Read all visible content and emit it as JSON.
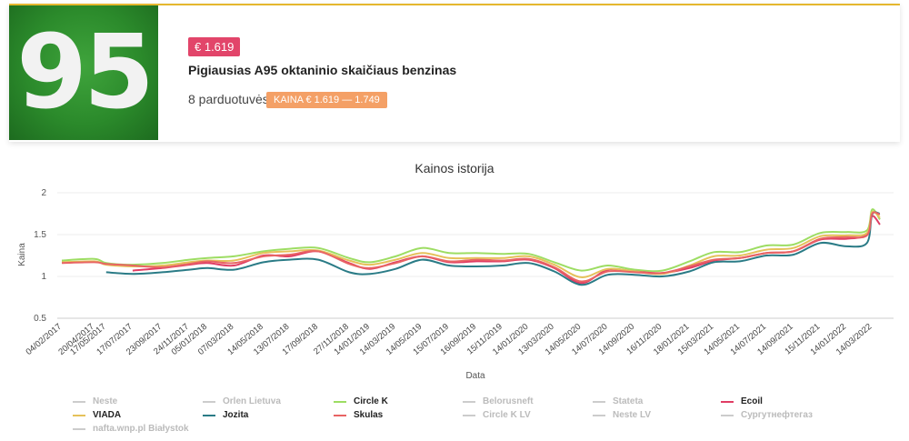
{
  "header": {
    "octane": "95",
    "price": "€ 1.619",
    "title": "Pigiausias A95 oktaninio skaičiaus benzinas",
    "stations": "8 parduotuvės",
    "range": "KAINA € 1.619 — 1.749"
  },
  "chart_data": {
    "type": "line",
    "title": "Kainos istorija",
    "xlabel": "Data",
    "ylabel": "Kaina",
    "ylim": [
      0.5,
      2
    ],
    "yticks": [
      "0.5",
      "1",
      "1.5",
      "2"
    ],
    "grid": true,
    "legend_placement": "bottom",
    "x_ticks": [
      "04/02/2017",
      "20/04/2017",
      "17/05/2017",
      "17/07/2017",
      "23/09/2017",
      "24/11/2017",
      "05/01/2018",
      "07/03/2018",
      "14/05/2018",
      "13/07/2018",
      "17/09/2018",
      "27/11/2018",
      "14/01/2019",
      "14/03/2019",
      "14/05/2019",
      "15/07/2019",
      "16/09/2019",
      "15/11/2019",
      "14/01/2020",
      "13/03/2020",
      "14/05/2020",
      "14/07/2020",
      "14/09/2020",
      "16/11/2020",
      "18/01/2021",
      "15/03/2021",
      "14/05/2021",
      "14/07/2021",
      "14/09/2021",
      "15/11/2021",
      "14/01/2022",
      "14/03/2022"
    ],
    "x_points": [
      "04/02/2017",
      "20/04/2017",
      "17/05/2017",
      "17/07/2017",
      "23/09/2017",
      "24/11/2017",
      "05/01/2018",
      "07/03/2018",
      "14/05/2018",
      "13/07/2018",
      "17/09/2018",
      "27/11/2018",
      "14/01/2019",
      "14/03/2019",
      "14/05/2019",
      "15/07/2019",
      "16/09/2019",
      "15/11/2019",
      "14/01/2020",
      "13/03/2020",
      "14/05/2020",
      "14/07/2020",
      "14/09/2020",
      "16/11/2020",
      "18/01/2021",
      "15/03/2021",
      "14/05/2021",
      "14/07/2021",
      "14/09/2021",
      "15/11/2021",
      "14/01/2022",
      "02/03/2022",
      "14/03/2022",
      "01/04/2022"
    ],
    "series": [
      {
        "name": "Circle K",
        "color": "#9ddd63",
        "values": [
          1.19,
          1.21,
          1.16,
          1.14,
          1.16,
          1.2,
          1.22,
          1.24,
          1.3,
          1.33,
          1.34,
          1.22,
          1.17,
          1.24,
          1.34,
          1.28,
          1.28,
          1.27,
          1.27,
          1.17,
          1.07,
          1.13,
          1.08,
          1.07,
          1.18,
          1.29,
          1.29,
          1.37,
          1.38,
          1.52,
          1.53,
          1.55,
          1.8,
          1.68
        ]
      },
      {
        "name": "Ecoil",
        "color": "#e03d64",
        "values": [
          null,
          null,
          null,
          1.07,
          1.1,
          1.14,
          1.16,
          1.13,
          1.25,
          1.24,
          1.3,
          1.16,
          1.09,
          1.17,
          1.24,
          1.17,
          1.18,
          1.18,
          1.2,
          1.1,
          0.92,
          1.08,
          1.06,
          1.04,
          1.1,
          1.19,
          1.22,
          1.28,
          1.3,
          1.44,
          1.45,
          1.5,
          1.72,
          1.62
        ]
      },
      {
        "name": "VIADA",
        "color": "#e5c15a",
        "values": [
          1.17,
          1.18,
          1.14,
          1.12,
          1.13,
          1.17,
          1.19,
          1.19,
          1.28,
          1.3,
          1.31,
          1.19,
          1.14,
          1.2,
          1.28,
          1.22,
          1.22,
          1.22,
          1.24,
          1.14,
          0.99,
          1.09,
          1.06,
          1.03,
          1.13,
          1.24,
          1.25,
          1.32,
          1.34,
          1.48,
          1.49,
          1.52,
          1.77,
          1.7
        ]
      },
      {
        "name": "Jozita",
        "color": "#2a7b86",
        "values": [
          null,
          null,
          1.05,
          1.03,
          1.05,
          1.08,
          1.1,
          1.08,
          1.17,
          1.2,
          1.2,
          1.05,
          1.03,
          1.09,
          1.2,
          1.13,
          1.12,
          1.13,
          1.16,
          1.06,
          0.9,
          1.02,
          1.02,
          1.0,
          1.06,
          1.17,
          1.18,
          1.25,
          1.26,
          1.4,
          1.36,
          1.4,
          1.74,
          1.75
        ]
      },
      {
        "name": "Skulas",
        "color": "#e86464",
        "values": [
          1.16,
          1.17,
          1.15,
          1.13,
          1.11,
          1.15,
          1.18,
          1.16,
          1.24,
          1.26,
          1.3,
          1.15,
          1.1,
          1.16,
          1.24,
          1.18,
          1.2,
          1.19,
          1.21,
          1.11,
          0.94,
          1.06,
          1.05,
          1.04,
          1.12,
          1.2,
          1.22,
          1.28,
          1.3,
          1.45,
          1.47,
          1.49,
          1.75,
          1.74
        ]
      }
    ],
    "legend": [
      {
        "name": "Neste",
        "color": "#cccccc",
        "active": false
      },
      {
        "name": "Orlen Lietuva",
        "color": "#cccccc",
        "active": false
      },
      {
        "name": "Circle K",
        "color": "#9ddd63",
        "active": true
      },
      {
        "name": "Belorusneft",
        "color": "#cccccc",
        "active": false
      },
      {
        "name": "Stateta",
        "color": "#cccccc",
        "active": false
      },
      {
        "name": "Ecoil",
        "color": "#e03d64",
        "active": true
      },
      {
        "name": "VIADA",
        "color": "#e5c15a",
        "active": true
      },
      {
        "name": "Jozita",
        "color": "#2a7b86",
        "active": true
      },
      {
        "name": "Skulas",
        "color": "#e86464",
        "active": true
      },
      {
        "name": "Circle K LV",
        "color": "#cccccc",
        "active": false
      },
      {
        "name": "Neste LV",
        "color": "#cccccc",
        "active": false
      },
      {
        "name": "Сургутнефтегаз",
        "color": "#cccccc",
        "active": false
      },
      {
        "name": "nafta.wnp.pl Białystok",
        "color": "#cccccc",
        "active": false
      }
    ]
  }
}
